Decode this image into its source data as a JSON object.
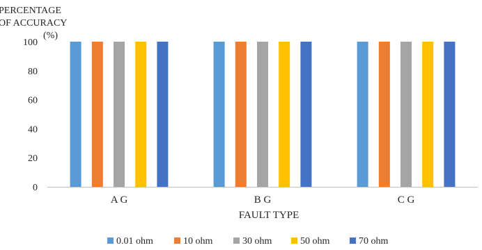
{
  "chart_data": {
    "type": "bar",
    "ylabel_lines": [
      "PERCENTAGE",
      "OF ACCURACY",
      "(%)"
    ],
    "xlabel": "FAULT TYPE",
    "categories": [
      "A G",
      "B G",
      "C G"
    ],
    "yticks": [
      "0",
      "20",
      "40",
      "60",
      "80",
      "100"
    ],
    "ylim": [
      0,
      100
    ],
    "grid": false,
    "legend_position": "bottom",
    "series": [
      {
        "name": "0.01 ohm",
        "color": "#5b9bd5",
        "values": [
          100,
          100,
          100
        ]
      },
      {
        "name": "10 ohm",
        "color": "#ed7d31",
        "values": [
          100,
          100,
          100
        ]
      },
      {
        "name": "30 ohm",
        "color": "#a5a5a5",
        "values": [
          100,
          100,
          100
        ]
      },
      {
        "name": "50 ohm",
        "color": "#ffc000",
        "values": [
          100,
          100,
          100
        ]
      },
      {
        "name": "70 ohm",
        "color": "#4472c4",
        "values": [
          100,
          100,
          100
        ]
      }
    ]
  }
}
